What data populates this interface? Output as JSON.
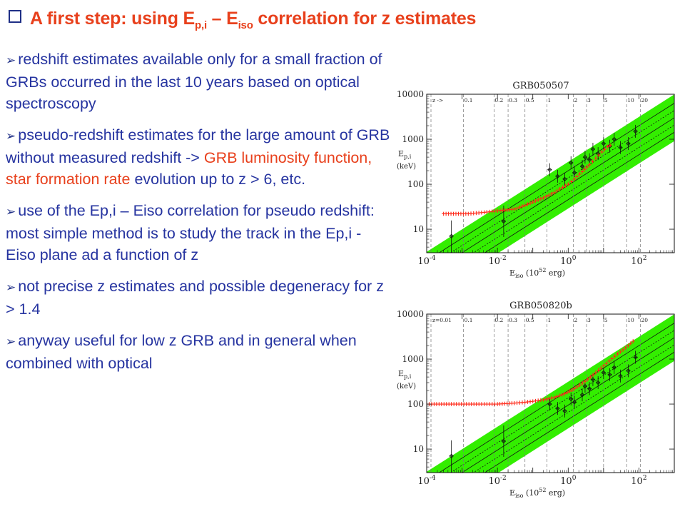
{
  "slide": {
    "title": {
      "pre": "A first step: using E",
      "sub1": "p,i",
      "mid": " – E",
      "sub2": "iso",
      "post": " correlation for z estimates"
    },
    "bullets": [
      {
        "blue": "redshift estimates available only for a small fraction of GRBs occurred in the last 10 years based on optical spectroscopy",
        "red": "",
        "blue2": ""
      },
      {
        "blue": "pseudo-redshift estimates for the large amount of GRB without measured redshift -> ",
        "red": "GRB luminosity function, star formation rate",
        "blue2": " evolution up to z > 6, etc."
      },
      {
        "blue": "use of the Ep,i – Eiso correlation for pseudo redshift: most simple method is to study the track in the Ep,i - Eiso plane ad a function of z",
        "red": "",
        "blue2": ""
      },
      {
        "blue": "not precise z estimates and possible degeneracy for  z > 1.4",
        "red": "",
        "blue2": ""
      },
      {
        "blue": "anyway useful for low z GRB and in general when combined with optical",
        "red": "",
        "blue2": ""
      }
    ]
  },
  "chart_data": [
    {
      "type": "scatter",
      "title": "GRB050507",
      "xlabel": "E_iso (10^52 erg)",
      "ylabel": "E_p,i (keV)",
      "xscale": "log",
      "yscale": "log",
      "xlim": [
        0.0001,
        1000
      ],
      "ylim": [
        3,
        10000
      ],
      "x_tick_labels": [
        "10^-4",
        "10^-2",
        "10^0",
        "10^2"
      ],
      "y_tick_labels": [
        "10",
        "100",
        "1000",
        "10000"
      ],
      "z_marker_label": "z ->",
      "z_markers": [
        "0.1",
        "0.2",
        "0.3",
        "0.5",
        "1",
        "2",
        "3",
        "5",
        "10",
        "20"
      ],
      "z_marker_positions": [
        0.0011,
        0.008,
        0.02,
        0.06,
        0.25,
        1.4,
        3.3,
        10,
        45,
        110
      ],
      "correlation_band_color": "#33ee00",
      "track_color": "#ff2a1a",
      "track": [
        [
          0.0003,
          22
        ],
        [
          0.0015,
          22
        ],
        [
          0.005,
          24
        ],
        [
          0.012,
          26
        ],
        [
          0.03,
          28
        ],
        [
          0.06,
          34
        ],
        [
          0.1,
          40
        ],
        [
          0.2,
          50
        ],
        [
          0.4,
          65
        ],
        [
          0.7,
          85
        ],
        [
          1.0,
          100
        ],
        [
          1.5,
          130
        ],
        [
          2.5,
          190
        ],
        [
          4,
          270
        ],
        [
          6,
          380
        ],
        [
          9,
          520
        ],
        [
          13,
          680
        ],
        [
          18,
          800
        ]
      ],
      "grb_points": [
        [
          0.0005,
          7
        ],
        [
          0.015,
          15
        ],
        [
          0.3,
          210
        ],
        [
          0.5,
          150
        ],
        [
          0.8,
          130
        ],
        [
          1.2,
          300
        ],
        [
          1.5,
          180
        ],
        [
          2.5,
          250
        ],
        [
          3,
          400
        ],
        [
          4,
          350
        ],
        [
          5,
          600
        ],
        [
          7,
          480
        ],
        [
          10,
          800
        ],
        [
          15,
          700
        ],
        [
          20,
          1000
        ],
        [
          30,
          650
        ],
        [
          50,
          800
        ],
        [
          80,
          1500
        ]
      ]
    },
    {
      "type": "scatter",
      "title": "GRB050820b",
      "xlabel": "E_iso (10^52 erg)",
      "ylabel": "E_p,i (keV)",
      "xscale": "log",
      "yscale": "log",
      "xlim": [
        0.0001,
        1000
      ],
      "ylim": [
        3,
        10000
      ],
      "x_tick_labels": [
        "10^-4",
        "10^-2",
        "10^0",
        "10^2"
      ],
      "y_tick_labels": [
        "10",
        "100",
        "1000",
        "10000"
      ],
      "z_marker_label": "z=0.01",
      "z_markers": [
        "0.1",
        "0.2",
        "0.3",
        "0.5",
        "1",
        "2",
        "3",
        "5",
        "10",
        "20"
      ],
      "z_marker_positions": [
        0.0011,
        0.008,
        0.02,
        0.06,
        0.25,
        1.4,
        3.3,
        10,
        45,
        110
      ],
      "correlation_band_color": "#33ee00",
      "track_color": "#ff2a1a",
      "track": [
        [
          0.0001,
          100
        ],
        [
          0.0005,
          100
        ],
        [
          0.003,
          100
        ],
        [
          0.01,
          100
        ],
        [
          0.03,
          105
        ],
        [
          0.06,
          110
        ],
        [
          0.1,
          115
        ],
        [
          0.2,
          125
        ],
        [
          0.4,
          140
        ],
        [
          0.8,
          170
        ],
        [
          1.5,
          220
        ],
        [
          3,
          320
        ],
        [
          6,
          500
        ],
        [
          12,
          800
        ],
        [
          25,
          1300
        ],
        [
          50,
          2000
        ],
        [
          80,
          2800
        ]
      ],
      "grb_points": [
        [
          0.0005,
          7
        ],
        [
          0.015,
          15
        ],
        [
          0.3,
          100
        ],
        [
          0.5,
          80
        ],
        [
          0.8,
          70
        ],
        [
          1.2,
          130
        ],
        [
          1.5,
          110
        ],
        [
          2.5,
          160
        ],
        [
          3,
          250
        ],
        [
          4,
          220
        ],
        [
          5,
          350
        ],
        [
          7,
          300
        ],
        [
          10,
          500
        ],
        [
          15,
          450
        ],
        [
          20,
          650
        ],
        [
          30,
          420
        ],
        [
          50,
          550
        ],
        [
          80,
          1100
        ]
      ]
    }
  ]
}
